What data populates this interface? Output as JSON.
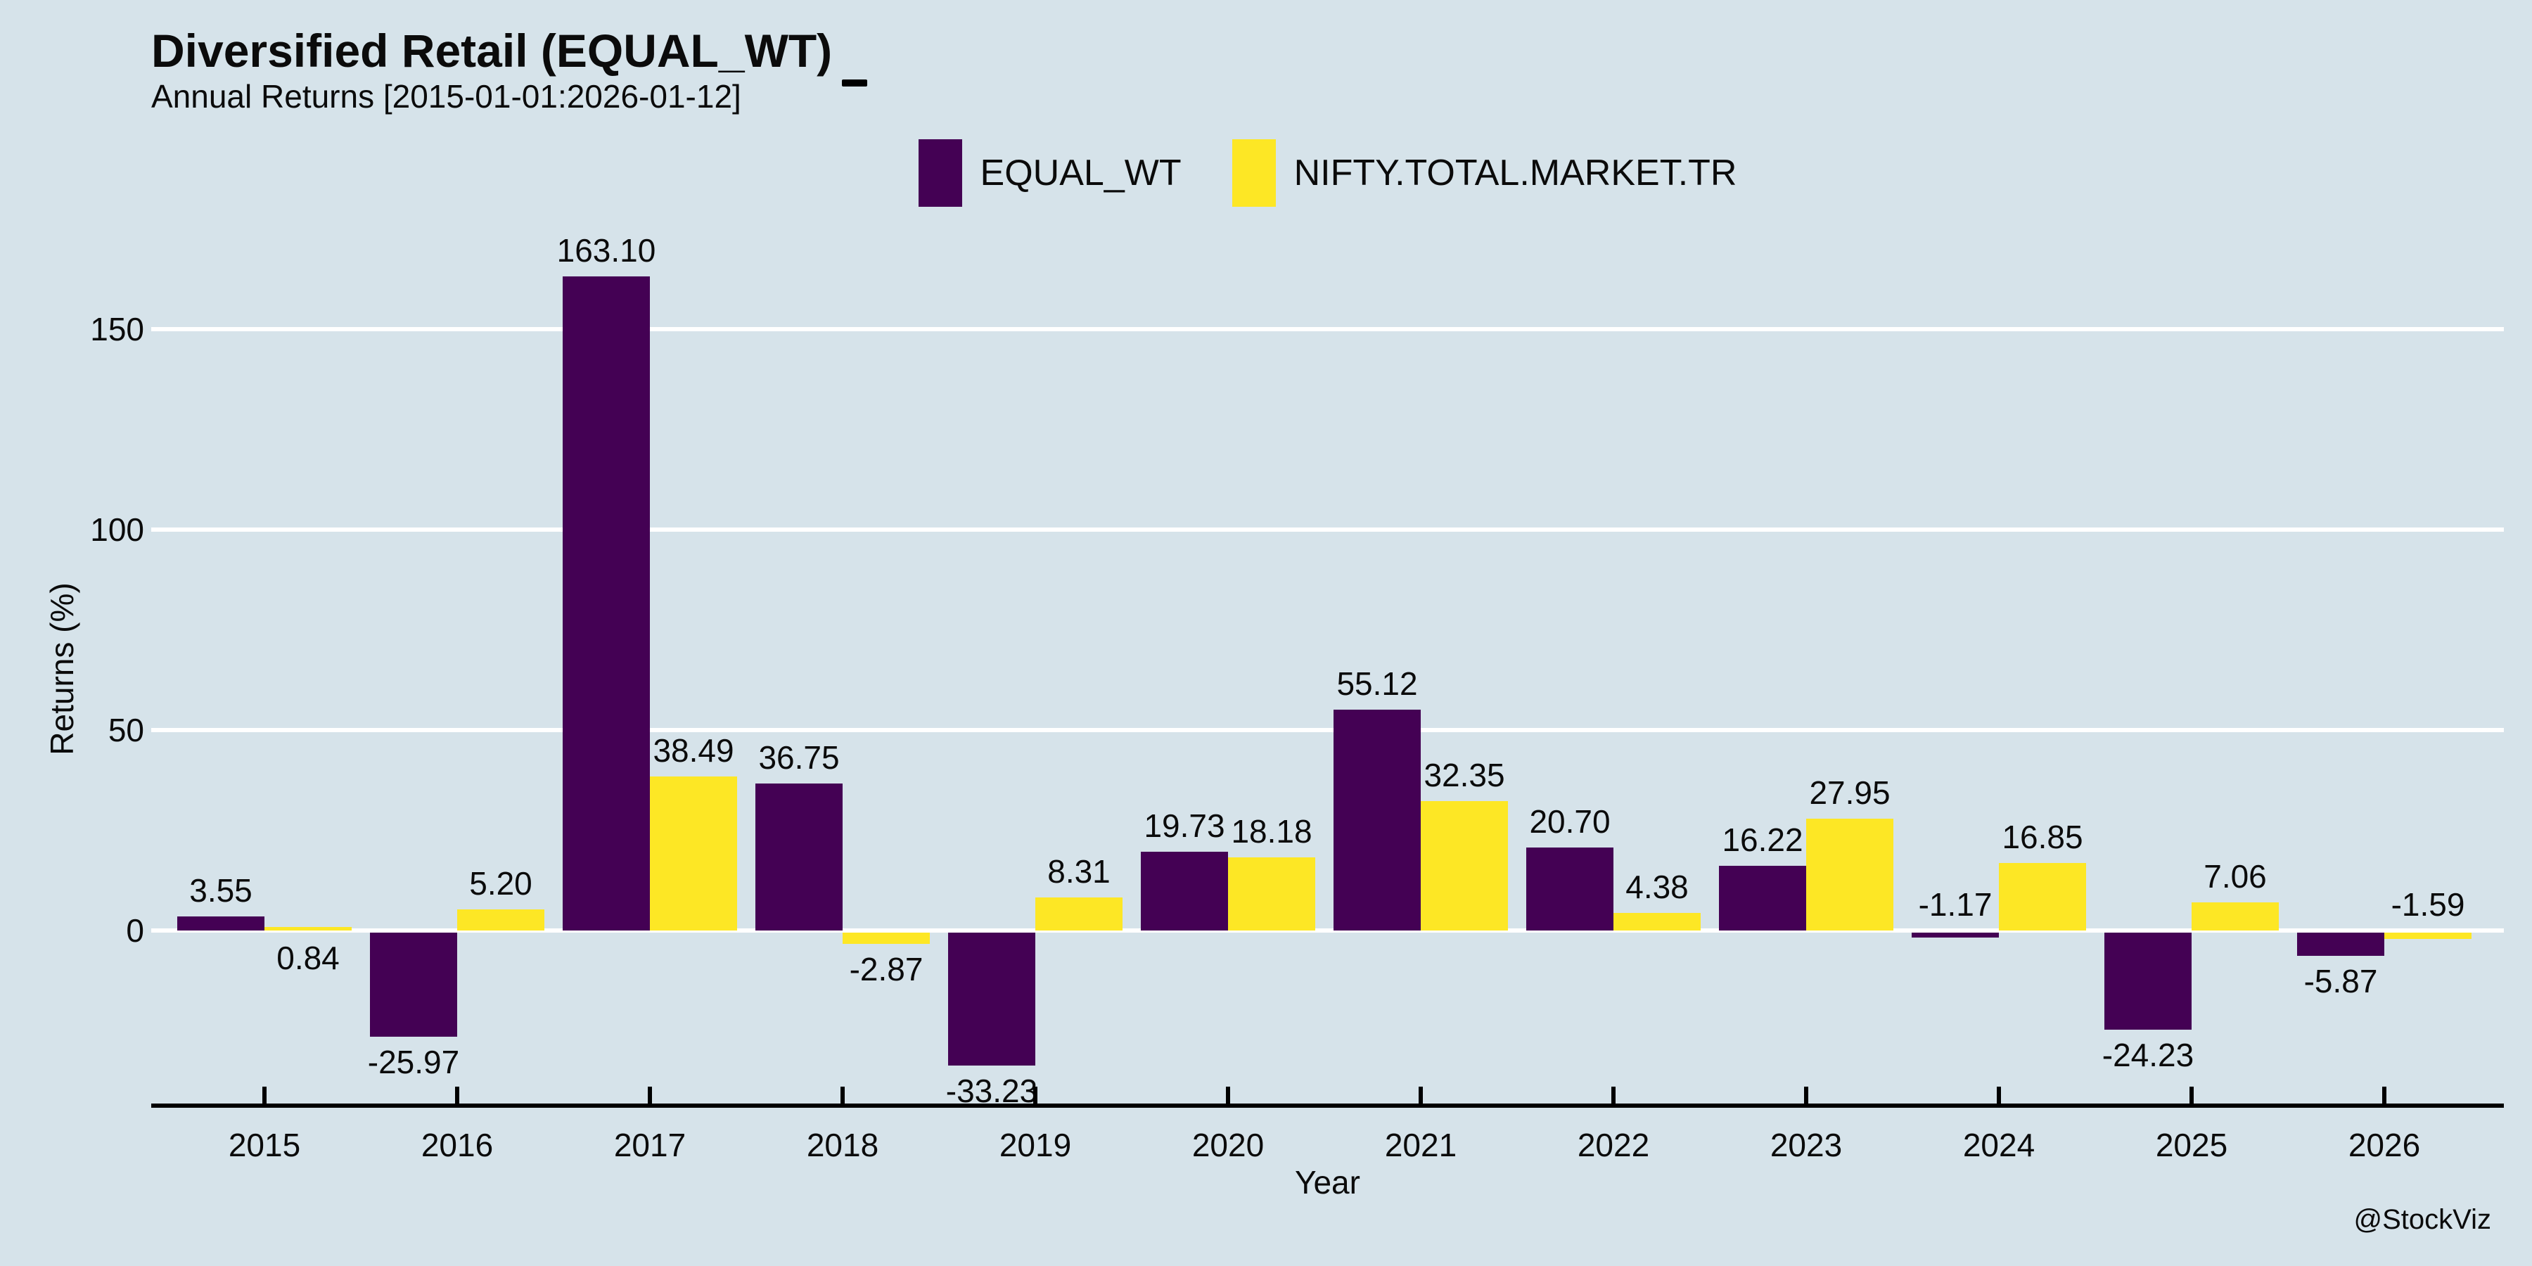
{
  "header": {
    "title": "Diversified Retail (EQUAL_WT)",
    "subtitle": "Annual Returns [2015-01-01:2026-01-12]"
  },
  "legend": {
    "items": [
      {
        "label": "EQUAL_WT",
        "color": "#440154"
      },
      {
        "label": "NIFTY.TOTAL.MARKET.TR",
        "color": "#fde725"
      }
    ]
  },
  "watermark": "@StockViz",
  "chart_data": {
    "type": "bar",
    "title": "Diversified Retail (EQUAL_WT)",
    "subtitle": "Annual Returns [2015-01-01:2026-01-12]",
    "categories": [
      "2015",
      "2016",
      "2017",
      "2018",
      "2019",
      "2020",
      "2021",
      "2022",
      "2023",
      "2024",
      "2025",
      "2026"
    ],
    "series": [
      {
        "name": "EQUAL_WT",
        "color": "#440154",
        "values": [
          3.55,
          -25.97,
          163.1,
          36.75,
          -33.23,
          19.73,
          55.12,
          20.7,
          16.22,
          -1.17,
          -24.23,
          -5.87
        ]
      },
      {
        "name": "NIFTY.TOTAL.MARKET.TR",
        "color": "#fde725",
        "values": [
          0.84,
          5.2,
          38.49,
          -2.87,
          8.31,
          18.18,
          32.35,
          4.38,
          27.95,
          16.85,
          7.06,
          -1.59
        ]
      }
    ],
    "xlabel": "Year",
    "ylabel": "Returns (%)",
    "y_ticks": [
      0,
      50,
      100,
      150
    ],
    "y_tick_labels": [
      "0",
      "50",
      "100",
      "150"
    ],
    "ylim": [
      -44,
      170
    ],
    "grid": "horizontal-white-lines",
    "legend_position": "top-center",
    "background": "#d6e3ea",
    "value_label_decimals": 2,
    "value_labels_shown": true,
    "label_side_overrides": [
      {
        "category": "2015",
        "series": "NIFTY.TOTAL.MARKET.TR",
        "side": "below"
      },
      {
        "category": "2024",
        "series": "EQUAL_WT",
        "side": "above"
      },
      {
        "category": "2026",
        "series": "NIFTY.TOTAL.MARKET.TR",
        "side": "above"
      }
    ]
  }
}
